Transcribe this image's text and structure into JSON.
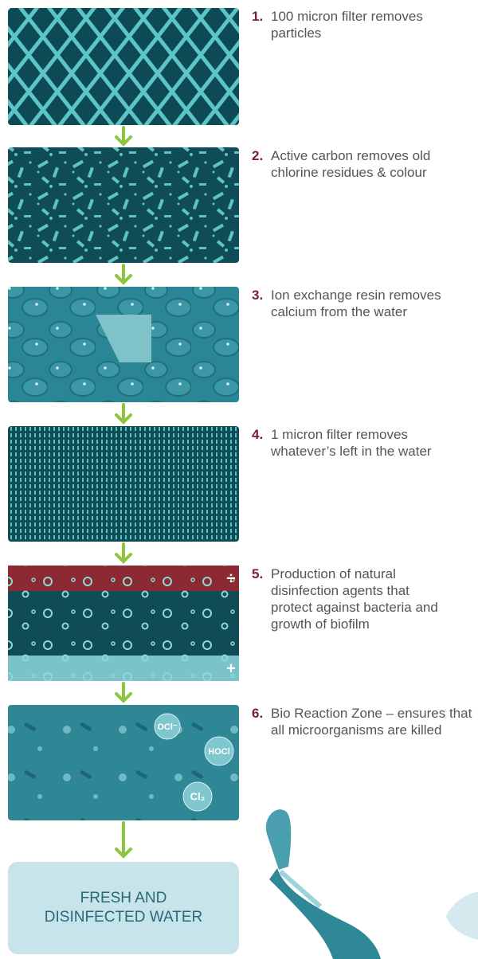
{
  "steps": [
    {
      "number": "1.",
      "text": "100 micron filter removes particles"
    },
    {
      "number": "2.",
      "text": "Active carbon removes old chlorine residues & colour"
    },
    {
      "number": "3.",
      "text": "Ion exchange resin removes calcium from the water"
    },
    {
      "number": "4.",
      "text": "1 micron filter removes whatever’s left in the water"
    },
    {
      "number": "5.",
      "text": "Production of natural disinfection agents that protect against bacteria and growth of biofilm"
    },
    {
      "number": "6.",
      "text": "Bio Reaction Zone – ensures that all microorganisms are killed"
    }
  ],
  "image_labels": {
    "minus": "÷",
    "plus": "+",
    "ocl": "OCl⁻",
    "hocl": "HOCl",
    "cl2": "Cl₂"
  },
  "result": "FRESH AND DISINFECTED WATER"
}
